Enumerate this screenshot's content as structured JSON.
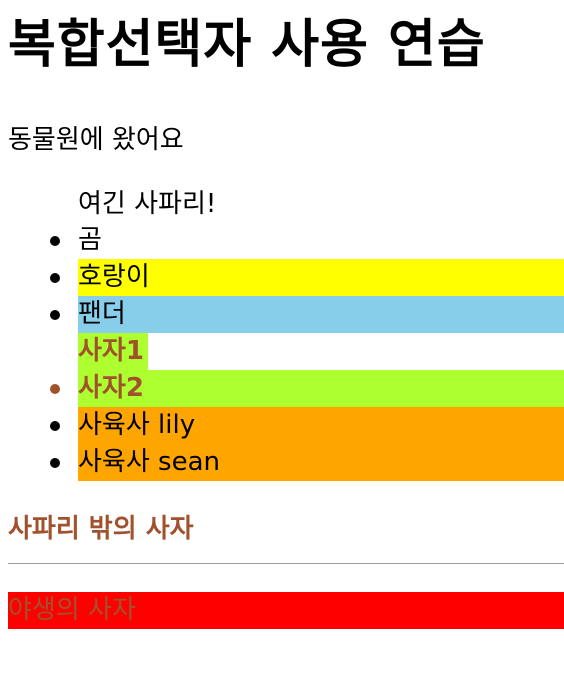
{
  "heading": "복합선택자 사용 연습",
  "intro": "동물원에 왔어요",
  "safari": {
    "caption": "여긴 사파리!",
    "items": [
      {
        "label": "곰"
      },
      {
        "label": "호랑이"
      },
      {
        "label": "팬더"
      },
      {
        "label": "사자1"
      },
      {
        "label": "사자2"
      },
      {
        "label": "사육사 lily"
      },
      {
        "label": "사육사 sean"
      }
    ]
  },
  "outside_lion": "사파리 밖의 사자",
  "wild_lion": "야생의 사자",
  "colors": {
    "yellow": "#ffff00",
    "skyblue": "#87ceeb",
    "greenyellow": "#adff2f",
    "orange": "#ffa500",
    "sienna": "#a0522d",
    "red": "#ff0000"
  }
}
